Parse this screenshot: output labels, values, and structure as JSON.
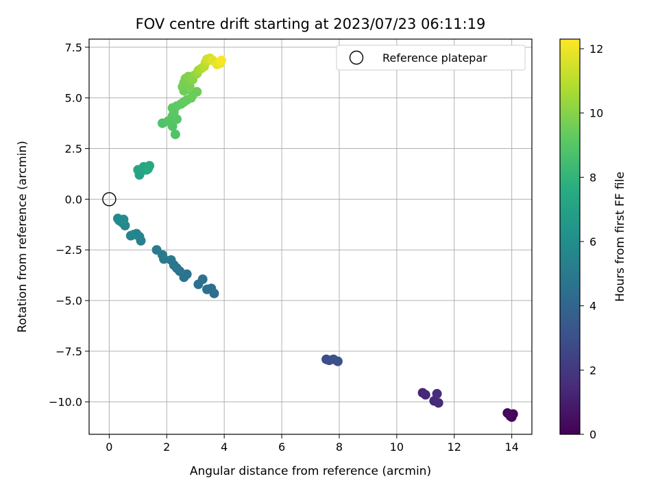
{
  "chart_data": {
    "type": "scatter",
    "title": "FOV centre drift starting at 2023/07/23 06:11:19",
    "xlabel": "Angular distance from reference (arcmin)",
    "ylabel": "Rotation from reference (arcmin)",
    "xlim": [
      -0.7,
      14.7
    ],
    "ylim": [
      -11.6,
      7.9
    ],
    "xticks": [
      0,
      2,
      4,
      6,
      8,
      10,
      12,
      14
    ],
    "xtick_labels": [
      "0",
      "2",
      "4",
      "6",
      "8",
      "10",
      "12",
      "14"
    ],
    "yticks": [
      7.5,
      5.0,
      2.5,
      0.0,
      -2.5,
      -5.0,
      -7.5,
      -10.0
    ],
    "ytick_labels": [
      "7.5",
      "5.0",
      "2.5",
      "0.0",
      "−2.5",
      "−5.0",
      "−7.5",
      "−10.0"
    ],
    "grid": true,
    "colormap": "viridis",
    "colorbar": {
      "label": "Hours from first FF file",
      "range": [
        0,
        12.3
      ],
      "ticks": [
        0,
        2,
        4,
        6,
        8,
        10,
        12
      ],
      "tick_labels": [
        "0",
        "2",
        "4",
        "6",
        "8",
        "10",
        "12"
      ]
    },
    "legend": {
      "label": "Reference platepar",
      "placement": "top-right"
    },
    "reference_point": {
      "x": 0,
      "y": 0
    },
    "points": [
      {
        "x": 13.85,
        "y": -10.55,
        "h": 0.05
      },
      {
        "x": 13.95,
        "y": -10.7,
        "h": 0.1
      },
      {
        "x": 14.05,
        "y": -10.6,
        "h": 0.15
      },
      {
        "x": 14.0,
        "y": -10.75,
        "h": 0.2
      },
      {
        "x": 13.9,
        "y": -10.6,
        "h": 0.3
      },
      {
        "x": 10.9,
        "y": -9.55,
        "h": 1.3
      },
      {
        "x": 11.0,
        "y": -9.65,
        "h": 1.35
      },
      {
        "x": 11.3,
        "y": -9.95,
        "h": 1.45
      },
      {
        "x": 11.45,
        "y": -10.05,
        "h": 1.5
      },
      {
        "x": 11.4,
        "y": -9.6,
        "h": 1.55
      },
      {
        "x": 7.55,
        "y": -7.9,
        "h": 2.9
      },
      {
        "x": 7.65,
        "y": -7.95,
        "h": 2.95
      },
      {
        "x": 7.8,
        "y": -7.9,
        "h": 3.0
      },
      {
        "x": 7.95,
        "y": -8.0,
        "h": 3.05
      },
      {
        "x": 3.65,
        "y": -4.65,
        "h": 4.4
      },
      {
        "x": 3.55,
        "y": -4.4,
        "h": 4.45
      },
      {
        "x": 3.4,
        "y": -4.45,
        "h": 4.5
      },
      {
        "x": 3.25,
        "y": -3.95,
        "h": 4.55
      },
      {
        "x": 3.1,
        "y": -4.2,
        "h": 4.6
      },
      {
        "x": 2.7,
        "y": -3.7,
        "h": 4.65
      },
      {
        "x": 2.6,
        "y": -3.85,
        "h": 4.7
      },
      {
        "x": 2.45,
        "y": -3.55,
        "h": 4.75
      },
      {
        "x": 2.35,
        "y": -3.4,
        "h": 4.8
      },
      {
        "x": 2.25,
        "y": -3.25,
        "h": 4.85
      },
      {
        "x": 2.15,
        "y": -3.0,
        "h": 4.9
      },
      {
        "x": 1.9,
        "y": -2.95,
        "h": 4.95
      },
      {
        "x": 1.85,
        "y": -2.75,
        "h": 5.0
      },
      {
        "x": 1.65,
        "y": -2.5,
        "h": 5.05
      },
      {
        "x": 1.1,
        "y": -2.05,
        "h": 5.4
      },
      {
        "x": 1.05,
        "y": -1.85,
        "h": 5.45
      },
      {
        "x": 0.95,
        "y": -1.7,
        "h": 5.5
      },
      {
        "x": 0.85,
        "y": -1.75,
        "h": 5.55
      },
      {
        "x": 0.75,
        "y": -1.8,
        "h": 5.6
      },
      {
        "x": 0.55,
        "y": -1.3,
        "h": 5.7
      },
      {
        "x": 0.45,
        "y": -1.15,
        "h": 5.75
      },
      {
        "x": 0.35,
        "y": -1.05,
        "h": 5.8
      },
      {
        "x": 0.3,
        "y": -0.95,
        "h": 5.85
      },
      {
        "x": 0.5,
        "y": -1.0,
        "h": 5.9
      },
      {
        "x": 1.05,
        "y": 1.2,
        "h": 7.1
      },
      {
        "x": 1.1,
        "y": 1.35,
        "h": 7.15
      },
      {
        "x": 1.0,
        "y": 1.45,
        "h": 7.2
      },
      {
        "x": 1.2,
        "y": 1.6,
        "h": 7.25
      },
      {
        "x": 1.3,
        "y": 1.45,
        "h": 7.3
      },
      {
        "x": 1.4,
        "y": 1.65,
        "h": 7.35
      },
      {
        "x": 1.35,
        "y": 1.5,
        "h": 7.4
      },
      {
        "x": 1.85,
        "y": 3.75,
        "h": 8.8
      },
      {
        "x": 2.3,
        "y": 3.2,
        "h": 8.85
      },
      {
        "x": 2.2,
        "y": 3.6,
        "h": 8.9
      },
      {
        "x": 2.05,
        "y": 3.85,
        "h": 8.95
      },
      {
        "x": 2.35,
        "y": 3.95,
        "h": 9.0
      },
      {
        "x": 2.2,
        "y": 4.1,
        "h": 9.05
      },
      {
        "x": 2.25,
        "y": 4.3,
        "h": 9.1
      },
      {
        "x": 2.2,
        "y": 4.5,
        "h": 9.15
      },
      {
        "x": 2.35,
        "y": 4.6,
        "h": 9.2
      },
      {
        "x": 2.5,
        "y": 4.7,
        "h": 9.25
      },
      {
        "x": 2.6,
        "y": 4.8,
        "h": 9.3
      },
      {
        "x": 2.7,
        "y": 4.9,
        "h": 9.35
      },
      {
        "x": 2.85,
        "y": 5.0,
        "h": 9.4
      },
      {
        "x": 2.9,
        "y": 5.15,
        "h": 9.45
      },
      {
        "x": 3.05,
        "y": 5.3,
        "h": 9.5
      },
      {
        "x": 2.6,
        "y": 5.35,
        "h": 9.55
      },
      {
        "x": 2.55,
        "y": 5.55,
        "h": 9.6
      },
      {
        "x": 2.6,
        "y": 5.75,
        "h": 9.7
      },
      {
        "x": 2.8,
        "y": 5.55,
        "h": 9.75
      },
      {
        "x": 2.65,
        "y": 5.95,
        "h": 9.8
      },
      {
        "x": 2.75,
        "y": 6.05,
        "h": 9.9
      },
      {
        "x": 2.9,
        "y": 5.9,
        "h": 10.0
      },
      {
        "x": 2.95,
        "y": 6.1,
        "h": 10.1
      },
      {
        "x": 3.05,
        "y": 6.2,
        "h": 10.3
      },
      {
        "x": 3.1,
        "y": 6.35,
        "h": 10.5
      },
      {
        "x": 3.2,
        "y": 6.45,
        "h": 10.7
      },
      {
        "x": 3.3,
        "y": 6.55,
        "h": 10.9
      },
      {
        "x": 3.35,
        "y": 6.75,
        "h": 11.1
      },
      {
        "x": 3.4,
        "y": 6.9,
        "h": 11.3
      },
      {
        "x": 3.5,
        "y": 6.95,
        "h": 11.5
      },
      {
        "x": 3.6,
        "y": 6.85,
        "h": 11.7
      },
      {
        "x": 3.75,
        "y": 6.65,
        "h": 11.9
      },
      {
        "x": 3.85,
        "y": 6.7,
        "h": 12.0
      },
      {
        "x": 3.9,
        "y": 6.85,
        "h": 12.2
      }
    ]
  }
}
